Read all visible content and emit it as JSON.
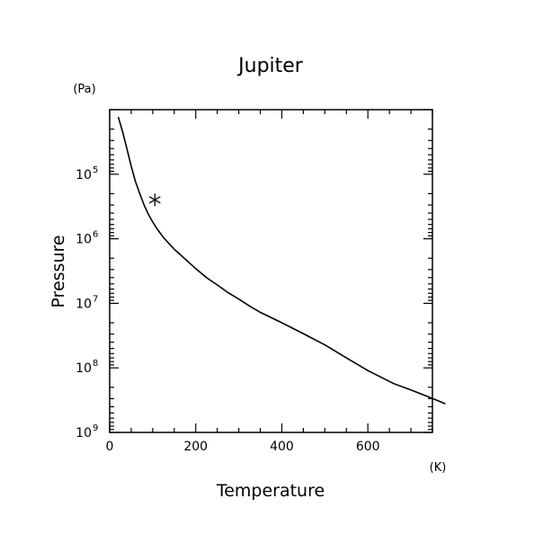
{
  "chart_data": {
    "type": "line",
    "title": "Jupiter",
    "xlabel": "Temperature",
    "ylabel": "Pressure",
    "xunit": "(K)",
    "yunit": "(Pa)",
    "xlim": [
      0,
      750
    ],
    "ylim": [
      1000000000,
      10000
    ],
    "yscale": "log",
    "y_inverted": true,
    "grid": false,
    "x_ticks": [
      {
        "value": 0,
        "label": "0"
      },
      {
        "value": 200,
        "label": "200"
      },
      {
        "value": 400,
        "label": "400"
      },
      {
        "value": 600,
        "label": "600"
      }
    ],
    "y_ticks": [
      {
        "value": 100000,
        "label": "10",
        "exp": "5"
      },
      {
        "value": 1000000,
        "label": "10",
        "exp": "6"
      },
      {
        "value": 10000000,
        "label": "10",
        "exp": "7"
      },
      {
        "value": 100000000,
        "label": "10",
        "exp": "8"
      },
      {
        "value": 1000000000,
        "label": "10",
        "exp": "9"
      }
    ],
    "series": [
      {
        "values": [
          [
            20,
            13000
          ],
          [
            30,
            22000
          ],
          [
            40,
            40000
          ],
          [
            50,
            75000
          ],
          [
            60,
            130000
          ],
          [
            70,
            200000
          ],
          [
            80,
            300000
          ],
          [
            90,
            420000
          ],
          [
            100,
            550000
          ],
          [
            110,
            700000
          ],
          [
            125,
            960000
          ],
          [
            150,
            1450000
          ],
          [
            175,
            2050000
          ],
          [
            200,
            2900000
          ],
          [
            225,
            4000000
          ],
          [
            250,
            5200000
          ],
          [
            275,
            6800000
          ],
          [
            300,
            8600000
          ],
          [
            325,
            11000000
          ],
          [
            350,
            13800000
          ],
          [
            400,
            20000000
          ],
          [
            450,
            29500000
          ],
          [
            500,
            44000000
          ],
          [
            550,
            70000000
          ],
          [
            600,
            110000000
          ],
          [
            660,
            175000000
          ],
          [
            700,
            220000000
          ],
          [
            740,
            280000000
          ],
          [
            780,
            360000000
          ]
        ]
      }
    ],
    "markers": [
      {
        "symbol": "asterisk",
        "x": 105,
        "y": 250000
      }
    ]
  }
}
